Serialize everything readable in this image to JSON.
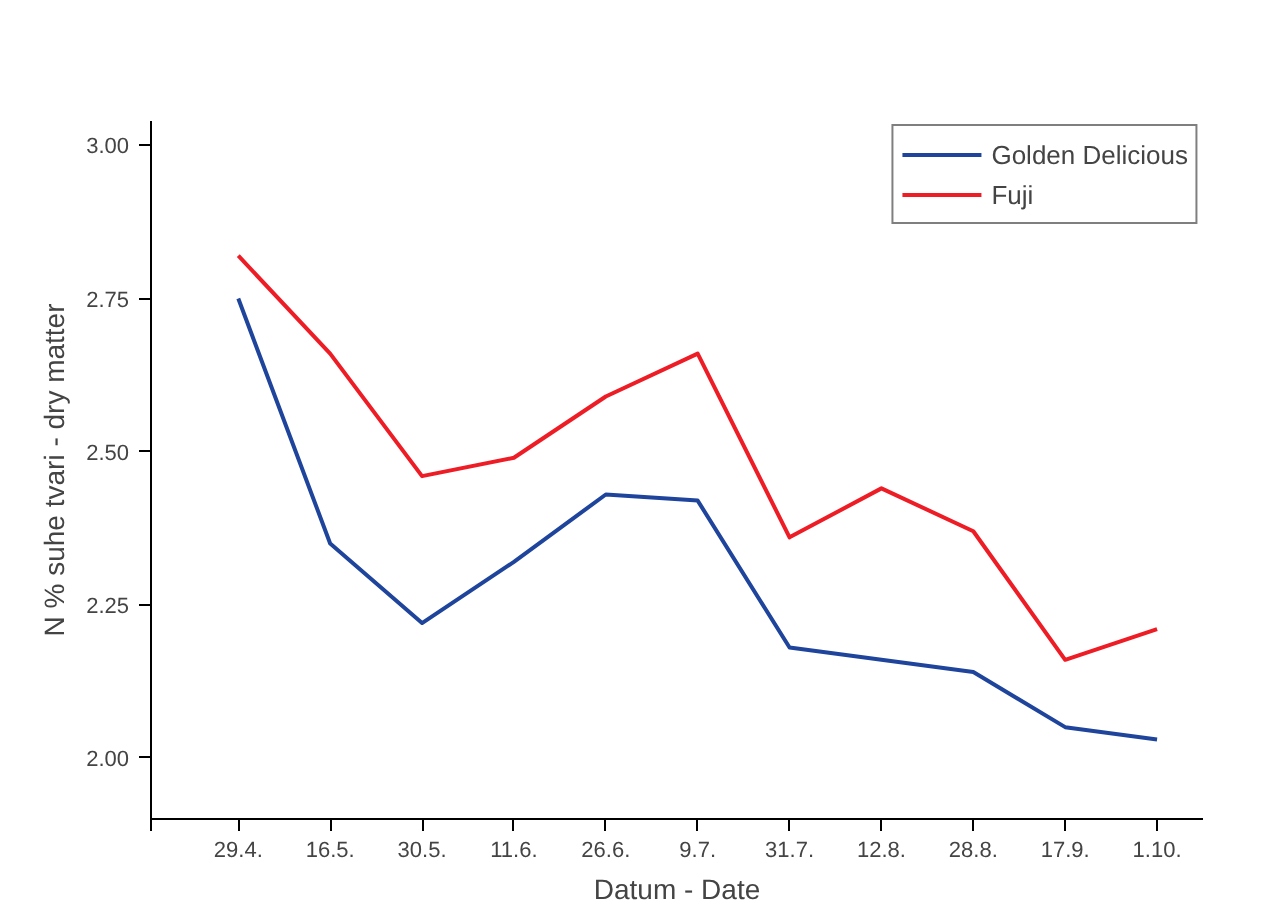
{
  "chart_data": {
    "type": "line",
    "xlabel": "Datum - Date",
    "ylabel": "N % suhe tvari - dry matter",
    "categories": [
      "29.4.",
      "16.5.",
      "30.5.",
      "11.6.",
      "26.6.",
      "9.7.",
      "31.7.",
      "12.8.",
      "28.8.",
      "17.9.",
      "1.10."
    ],
    "series": [
      {
        "name": "Golden Delicious",
        "color": "#1f449c",
        "values": [
          2.75,
          2.35,
          2.22,
          2.32,
          2.43,
          2.42,
          2.18,
          2.16,
          2.14,
          2.05,
          2.03
        ]
      },
      {
        "name": "Fuji",
        "color": "#ee1c25",
        "values": [
          2.82,
          2.66,
          2.46,
          2.49,
          2.59,
          2.66,
          2.36,
          2.44,
          2.37,
          2.16,
          2.21
        ]
      }
    ],
    "ylim": [
      1.9,
      3.04
    ],
    "yticks": [
      {
        "value": 2,
        "label": "2.00"
      },
      {
        "value": 2.25,
        "label": "2.25"
      },
      {
        "value": 2.5,
        "label": "2.50"
      },
      {
        "value": 2.75,
        "label": "2.75"
      },
      {
        "value": 3,
        "label": "3.00"
      }
    ],
    "grid": false,
    "legend": "top right",
    "marker": "none",
    "line_style": "solid"
  }
}
